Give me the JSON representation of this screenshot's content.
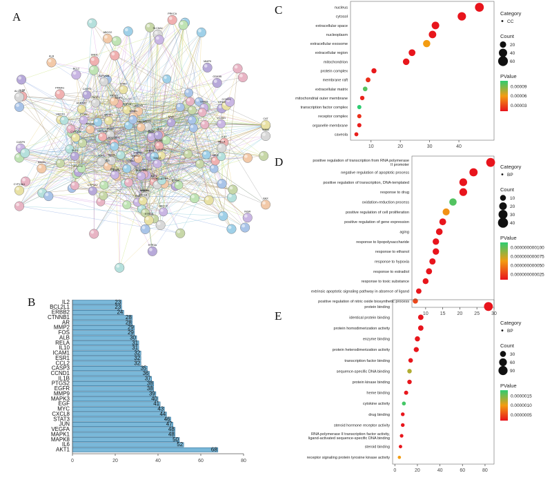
{
  "panels": {
    "a": "A",
    "b": "B",
    "c": "C",
    "d": "D",
    "e": "E"
  },
  "network": {
    "labels": [
      "HMGCR",
      "ALOX5",
      "PARP1",
      "TOP2A",
      "SLP1",
      "ADCYAP1",
      "CTSD",
      "ESR1",
      "CCNA2",
      "HMOX1",
      "CHEK1",
      "E2F1",
      "BRCA1",
      "CDK4",
      "TOP1",
      "KEAP1",
      "CASP3",
      "MMP3",
      "TNF",
      "IL6",
      "AKT1",
      "VEGFA",
      "EGFR",
      "JUN",
      "STAT3",
      "MAPK1",
      "MAPK8",
      "CXCL8",
      "MYC",
      "EGF",
      "PLAU",
      "PRSS1",
      "PLAT",
      "THBD",
      "F2",
      "SELE",
      "VCAM1",
      "ICAM1",
      "NQO1",
      "GSTP1",
      "PTGS2",
      "IL10",
      "ABCC2",
      "ABCB1",
      "CYP3A4",
      "CYP2C9",
      "CYP1A2",
      "UGT1A1",
      "SULT1A1",
      "NR1I2",
      "ADRA2A",
      "ADRA2C",
      "OPRM1",
      "ACHE",
      "MAOA",
      "MAOB",
      "SLC6A4",
      "HTR2A",
      "DRD2",
      "PPARG",
      "BCL2",
      "BAX",
      "RELA",
      "CCND1",
      "MMP9",
      "IL1B",
      "CASP9",
      "ALB",
      "SOD1",
      "CAT",
      "GSK3B",
      "PRKCA",
      "INSR",
      "ABCG2",
      "ALOX12",
      "CYP19A1",
      "HTR3A",
      "DRD1"
    ]
  },
  "bar_chart": {
    "type": "bar",
    "categories": [
      "IL2",
      "BCL2L1",
      "ERBB2",
      "CTNNB1",
      "AR",
      "MMP2",
      "FOS",
      "ALB",
      "RELA",
      "IL10",
      "ICAM1",
      "ESR1",
      "CCL2",
      "CASP3",
      "CCND1",
      "IL1B",
      "PTGS2",
      "EGFR",
      "MMP9",
      "MAPK3",
      "EGF",
      "MYC",
      "CXCL8",
      "STAT3",
      "JUN",
      "VEGFA",
      "MAPK1",
      "MAPK8",
      "IL6",
      "AKT1"
    ],
    "values": [
      23,
      23,
      24,
      28,
      28,
      29,
      29,
      30,
      31,
      31,
      32,
      32,
      32,
      35,
      36,
      37,
      38,
      38,
      39,
      40,
      41,
      43,
      44,
      46,
      47,
      48,
      48,
      50,
      52,
      68
    ],
    "xlim": [
      0,
      80
    ],
    "xticks": [
      0,
      20,
      40,
      60,
      80
    ],
    "color": "#7ab8d9"
  },
  "chart_data": [
    {
      "type": "scatter",
      "panel": "C",
      "category_legend": {
        "title": "Category",
        "item": "CC"
      },
      "count_legend": {
        "title": "Count",
        "values": [
          20,
          40,
          60
        ]
      },
      "pvalue_legend": {
        "title": "PValue",
        "ticks": [
          "0.00009",
          "0.00006",
          "0.00003"
        ]
      },
      "xlim": [
        3,
        52
      ],
      "xticks": [
        10,
        20,
        30,
        40
      ],
      "pmax": 0.0001,
      "terms": [
        "nucleus",
        "cytosol",
        "extracellular space",
        "nucleoplasm",
        "extracellular exosome",
        "extracellular region",
        "mitochondrion",
        "protein complex",
        "membrane raft",
        "extracellular matrix",
        "mitochondrial outer membrane",
        "transcription factor complex",
        "receptor complex",
        "organelle membrane",
        "caveola"
      ],
      "counts": [
        47,
        41,
        32,
        31,
        29,
        24,
        22,
        11,
        9,
        8,
        7,
        6,
        6,
        6,
        5
      ],
      "pvalues": [
        1e-07,
        1e-07,
        2e-07,
        1e-06,
        5e-05,
        2e-07,
        1e-06,
        2e-06,
        1e-05,
        9e-05,
        5e-06,
        0.0001,
        1e-05,
        3e-06,
        4e-06
      ]
    },
    {
      "type": "scatter",
      "panel": "D",
      "category_legend": {
        "title": "Category",
        "item": "BP"
      },
      "count_legend": {
        "title": "Count",
        "values": [
          10,
          20,
          30,
          40
        ]
      },
      "pvalue_legend": {
        "title": "PValue",
        "ticks": [
          "0.000000000100",
          "0.000000000075",
          "0.000000000050",
          "0.000000000025"
        ]
      },
      "xlim": [
        6,
        30
      ],
      "xticks": [
        10,
        15,
        20,
        25,
        30
      ],
      "pmax": 1.1e-10,
      "terms": [
        "positive regulation of transcription from RNA polymerase II promoter",
        "negative regulation of apoptotic process",
        "positive regulation of transcription, DNA-templated",
        "response to drug",
        "oxidation-reduction process",
        "positive regulation of cell proliferation",
        "positive regulation of gene expression",
        "aging",
        "response to lipopolysaccharide",
        "response to ethanol",
        "response to hypoxia",
        "response to estradiol",
        "response to toxic substance",
        "extrinsic apoptotic signaling pathway in absence of ligand",
        "positive regulation of nitric oxide biosynthetic process"
      ],
      "counts": [
        29,
        24,
        21,
        21,
        18,
        16,
        15,
        14,
        13,
        13,
        12,
        11,
        10,
        8,
        7
      ],
      "pvalues": [
        1e-15,
        1e-14,
        1e-13,
        1e-13,
        1e-10,
        5e-11,
        1e-12,
        1e-13,
        1e-14,
        1e-14,
        1e-13,
        1e-13,
        1e-12,
        1e-12,
        2e-11
      ]
    },
    {
      "type": "scatter",
      "panel": "E",
      "category_legend": {
        "title": "Category",
        "item": "BP"
      },
      "count_legend": {
        "title": "Count",
        "values": [
          30,
          60,
          90
        ]
      },
      "pvalue_legend": {
        "title": "PValue",
        "ticks": [
          "0.0000015",
          "0.0000010",
          "0.0000005"
        ]
      },
      "xlim": [
        -2,
        88
      ],
      "xticks": [
        0,
        20,
        40,
        60,
        80
      ],
      "pmax": 1.8e-06,
      "terms": [
        "protein binding",
        "identical protein binding",
        "protein homodimerization activity",
        "enzyme binding",
        "protein heterodimerization activity",
        "transcription factor binding",
        "sequence-specific DNA binding",
        "protein kinase binding",
        "heme binding",
        "cytokine activity",
        "drug binding",
        "steroid hormone receptor activity",
        "RNA polymerase II transcription factor activity, ligand-activated sequence-specific DNA binding",
        "steroid binding",
        "receptor signaling protein tyrosine kinase activity"
      ],
      "counts": [
        83,
        23,
        23,
        20,
        19,
        14,
        13,
        13,
        10,
        8,
        7,
        7,
        6,
        5,
        4
      ],
      "pvalues": [
        1e-10,
        1e-09,
        1e-09,
        1e-08,
        1e-08,
        1e-08,
        1.2e-06,
        1e-08,
        1e-08,
        1.7e-06,
        1e-08,
        1e-08,
        1e-08,
        1e-08,
        9e-07
      ]
    }
  ]
}
